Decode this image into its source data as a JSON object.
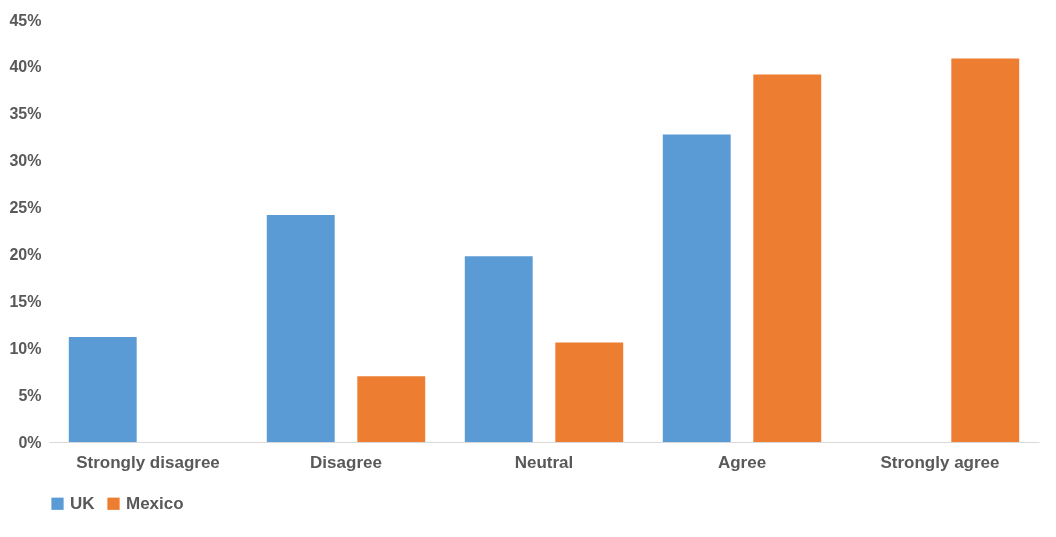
{
  "chart_data": {
    "type": "bar",
    "categories": [
      "Strongly disagree",
      "Disagree",
      "Neutral",
      "Agree",
      "Strongly agree"
    ],
    "series": [
      {
        "name": "UK",
        "color": "#5b9bd5",
        "values": [
          11.2,
          24.2,
          19.8,
          32.8,
          0
        ]
      },
      {
        "name": "Mexico",
        "color": "#ed7d31",
        "values": [
          0,
          7.0,
          10.6,
          39.2,
          40.9
        ]
      }
    ],
    "ylim": [
      0,
      45
    ],
    "yticks": [
      {
        "value": 0,
        "label": "0%"
      },
      {
        "value": 5,
        "label": "5%"
      },
      {
        "value": 10,
        "label": "10%"
      },
      {
        "value": 15,
        "label": "15%"
      },
      {
        "value": 20,
        "label": "20%"
      },
      {
        "value": 25,
        "label": "25%"
      },
      {
        "value": 30,
        "label": "30%"
      },
      {
        "value": 35,
        "label": "35%"
      },
      {
        "value": 40,
        "label": "40%"
      },
      {
        "value": 45,
        "label": "45%"
      }
    ],
    "grid": false,
    "legend": "bottom"
  }
}
